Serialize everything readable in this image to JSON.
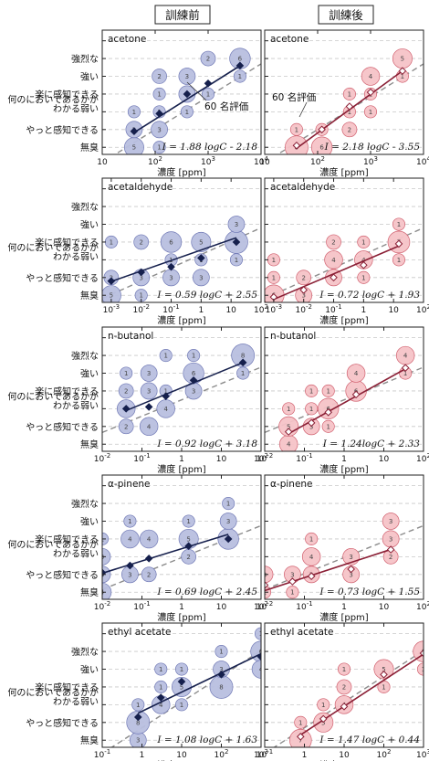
{
  "headers": {
    "left": "訓練前",
    "right": "訓練後"
  },
  "y_levels": [
    "無臭",
    "やっと感知できる",
    "わかる弱い",
    "何のにおいであるかが",
    "楽に感知できる",
    "強い",
    "強烈な"
  ],
  "annotation": "60 名評価",
  "colors": {
    "before_fill": "#b9bfe0",
    "before_edge": "#6b74b3",
    "before_line": "#16204d",
    "after_fill": "#f6c3c8",
    "after_edge": "#cf5a69",
    "after_line": "#8a1f35",
    "dash": "#8c8c8c",
    "grid": "#c8c8c8"
  },
  "chart_data": [
    {
      "type": "scatter",
      "chemical": "acetone",
      "column": "訓練前",
      "xlabel": "濃度 [ppm]",
      "xscale": "log",
      "xlim": [
        10,
        10000
      ],
      "ylim": [
        -0.4,
        6.6
      ],
      "xticks": [
        "10",
        "10^2",
        "10^3",
        "10^4"
      ],
      "equation": "I = 1.88 logC - 2.18",
      "fit": {
        "slope": 1.88,
        "intercept": -2.18
      },
      "dashed": {
        "slope": 1.85,
        "intercept": -2.7
      },
      "means": [
        [
          40,
          0.9
        ],
        [
          120,
          1.9
        ],
        [
          400,
          3.0
        ],
        [
          1000,
          3.6
        ],
        [
          4000,
          4.6
        ]
      ],
      "bubbles": [
        [
          40,
          0,
          5
        ],
        [
          40,
          1,
          3
        ],
        [
          120,
          1,
          3
        ],
        [
          120,
          2,
          1
        ],
        [
          120,
          3,
          1
        ],
        [
          120,
          4,
          2
        ],
        [
          400,
          3,
          3
        ],
        [
          400,
          4,
          3
        ],
        [
          400,
          2,
          1
        ],
        [
          1000,
          5,
          2
        ],
        [
          1000,
          3,
          1
        ],
        [
          4000,
          5,
          6
        ],
        [
          4000,
          4,
          1
        ],
        [
          40,
          2,
          1
        ],
        [
          120,
          0,
          1
        ]
      ]
    },
    {
      "type": "scatter",
      "chemical": "acetone",
      "column": "訓練後",
      "xlabel": "濃度 [ppm]",
      "xscale": "log",
      "xlim": [
        10,
        10000
      ],
      "ylim": [
        -0.4,
        6.6
      ],
      "xticks": [
        "10",
        "10^2",
        "10^3",
        "10^4"
      ],
      "equation": "I = 2.18 logC - 3.55",
      "fit": {
        "slope": 2.18,
        "intercept": -3.55
      },
      "dashed": {
        "slope": 1.85,
        "intercept": -2.7
      },
      "means": [
        [
          40,
          0.1
        ],
        [
          120,
          1.0
        ],
        [
          400,
          2.3
        ],
        [
          1000,
          3.1
        ],
        [
          4000,
          4.3
        ]
      ],
      "bubbles": [
        [
          40,
          0,
          8
        ],
        [
          120,
          0,
          6
        ],
        [
          120,
          1,
          1
        ],
        [
          400,
          1,
          2
        ],
        [
          400,
          2,
          1
        ],
        [
          400,
          3,
          1
        ],
        [
          1000,
          3,
          1
        ],
        [
          1000,
          4,
          4
        ],
        [
          1000,
          2,
          1
        ],
        [
          4000,
          5,
          5
        ],
        [
          4000,
          4,
          1
        ],
        [
          40,
          1,
          1
        ]
      ]
    },
    {
      "type": "scatter",
      "chemical": "acetaldehyde",
      "column": "訓練前",
      "xlabel": "濃度 [ppm]",
      "xscale": "log",
      "xlim": [
        0.0005,
        100
      ],
      "ylim": [
        -0.4,
        6.6
      ],
      "xticks": [
        "10^-3",
        "10^-2",
        "10^-1",
        "1",
        "10",
        "10^2"
      ],
      "equation": "I = 0.59 logC + 2.55",
      "fit": {
        "slope": 0.59,
        "intercept": 2.55
      },
      "dashed": {
        "slope": 0.75,
        "intercept": 2.3
      },
      "means": [
        [
          0.001,
          0.8
        ],
        [
          0.01,
          1.3
        ],
        [
          0.1,
          1.6
        ],
        [
          1,
          2.1
        ],
        [
          15,
          3.0
        ]
      ],
      "bubbles": [
        [
          0.001,
          0,
          5
        ],
        [
          0.001,
          1,
          2
        ],
        [
          0.001,
          3,
          1
        ],
        [
          0.01,
          0,
          1
        ],
        [
          0.01,
          1,
          3
        ],
        [
          0.01,
          3,
          2
        ],
        [
          0.1,
          1,
          3
        ],
        [
          0.1,
          3,
          6
        ],
        [
          0.1,
          2,
          1
        ],
        [
          1,
          3,
          5
        ],
        [
          1,
          1,
          3
        ],
        [
          1,
          2,
          1
        ],
        [
          15,
          3,
          8
        ],
        [
          15,
          4,
          3
        ],
        [
          15,
          2,
          1
        ]
      ]
    },
    {
      "type": "scatter",
      "chemical": "acetaldehyde",
      "column": "訓練後",
      "xlabel": "濃度 [ppm]",
      "xscale": "log",
      "xlim": [
        0.0005,
        100
      ],
      "ylim": [
        -0.4,
        6.6
      ],
      "xticks": [
        "10^-3",
        "10^-2",
        "10^-1",
        "1",
        "10",
        "10^2"
      ],
      "equation": "I = 0.72 logC + 1.93",
      "fit": {
        "slope": 0.72,
        "intercept": 1.93
      },
      "dashed": {
        "slope": 0.75,
        "intercept": 2.3
      },
      "means": [
        [
          0.001,
          -0.1
        ],
        [
          0.01,
          0.3
        ],
        [
          0.1,
          1.0
        ],
        [
          1,
          1.7
        ],
        [
          15,
          2.9
        ]
      ],
      "bubbles": [
        [
          0.001,
          0,
          6
        ],
        [
          0.001,
          1,
          1
        ],
        [
          0.001,
          2,
          1
        ],
        [
          0.01,
          0,
          3
        ],
        [
          0.01,
          1,
          2
        ],
        [
          0.1,
          1,
          3
        ],
        [
          0.1,
          2,
          4
        ],
        [
          0.1,
          3,
          2
        ],
        [
          1,
          2,
          4
        ],
        [
          1,
          1,
          1
        ],
        [
          1,
          3,
          1
        ],
        [
          15,
          3,
          7
        ],
        [
          15,
          2,
          1
        ],
        [
          15,
          4,
          1
        ]
      ]
    },
    {
      "type": "scatter",
      "chemical": "n-butanol",
      "column": "訓練前",
      "xlabel": "濃度 [ppm]",
      "xscale": "log",
      "xlim": [
        0.01,
        100
      ],
      "ylim": [
        -0.4,
        6.6
      ],
      "xticks": [
        "10^-2",
        "10^-1",
        "1",
        "10",
        "10^2"
      ],
      "equation": "I = 0.92 logC + 3.18",
      "fit": {
        "slope": 0.92,
        "intercept": 3.18
      },
      "dashed": {
        "slope": 0.92,
        "intercept": 2.5
      },
      "means": [
        [
          0.04,
          2.0
        ],
        [
          0.15,
          2.1
        ],
        [
          0.4,
          2.7
        ],
        [
          2,
          3.6
        ],
        [
          35,
          4.6
        ]
      ],
      "bubbles": [
        [
          0.04,
          1,
          2
        ],
        [
          0.04,
          2,
          4
        ],
        [
          0.04,
          3,
          2
        ],
        [
          0.04,
          4,
          1
        ],
        [
          0.15,
          1,
          4
        ],
        [
          0.15,
          3,
          3
        ],
        [
          0.15,
          4,
          3
        ],
        [
          0.4,
          2,
          4
        ],
        [
          0.4,
          3,
          1
        ],
        [
          0.4,
          5,
          1
        ],
        [
          2,
          3,
          3
        ],
        [
          2,
          4,
          6
        ],
        [
          2,
          5,
          1
        ],
        [
          35,
          5,
          8
        ],
        [
          35,
          4,
          1
        ]
      ]
    },
    {
      "type": "scatter",
      "chemical": "n-butanol",
      "column": "訓練後",
      "xlabel": "濃度 [ppm]",
      "xscale": "log",
      "xlim": [
        0.01,
        100
      ],
      "ylim": [
        -0.4,
        6.6
      ],
      "xticks": [
        "10^-2",
        "10^-1",
        "1",
        "10",
        "10^2"
      ],
      "equation": "I = 1.24logC + 2.33",
      "fit": {
        "slope": 1.24,
        "intercept": 2.33
      },
      "dashed": {
        "slope": 0.92,
        "intercept": 2.5
      },
      "means": [
        [
          0.04,
          0.7
        ],
        [
          0.15,
          1.2
        ],
        [
          0.4,
          1.8
        ],
        [
          2,
          2.8
        ],
        [
          35,
          4.3
        ]
      ],
      "bubbles": [
        [
          0.04,
          0,
          4
        ],
        [
          0.04,
          1,
          5
        ],
        [
          0.04,
          2,
          1
        ],
        [
          0.15,
          1,
          3
        ],
        [
          0.15,
          2,
          1
        ],
        [
          0.15,
          3,
          1
        ],
        [
          0.4,
          2,
          6
        ],
        [
          0.4,
          1,
          1
        ],
        [
          0.4,
          3,
          1
        ],
        [
          2,
          3,
          6
        ],
        [
          2,
          4,
          4
        ],
        [
          35,
          5,
          4
        ],
        [
          35,
          4,
          1
        ]
      ]
    },
    {
      "type": "scatter",
      "chemical": "α-pinene",
      "column": "訓練前",
      "xlabel": "濃度 [ppm]",
      "xscale": "log",
      "xlim": [
        0.01,
        100
      ],
      "ylim": [
        -0.4,
        6.6
      ],
      "xticks": [
        "10^-2",
        "10^-1",
        "1",
        "10",
        "10^2"
      ],
      "equation": "I = 0.69 logC + 2.45",
      "fit": {
        "slope": 0.69,
        "intercept": 2.45
      },
      "dashed": {
        "slope": 0.9,
        "intercept": 1.95
      },
      "means": [
        [
          0.01,
          1.1
        ],
        [
          0.05,
          1.5
        ],
        [
          0.15,
          1.9
        ],
        [
          1.5,
          2.6
        ],
        [
          15,
          3.0
        ]
      ],
      "bubbles": [
        [
          0.01,
          0,
          4
        ],
        [
          0.01,
          1,
          3
        ],
        [
          0.01,
          2,
          3
        ],
        [
          0.01,
          3,
          1
        ],
        [
          0.05,
          1,
          3
        ],
        [
          0.05,
          3,
          4
        ],
        [
          0.05,
          4,
          1
        ],
        [
          0.15,
          1,
          2
        ],
        [
          0.15,
          3,
          4
        ],
        [
          1.5,
          2,
          2
        ],
        [
          1.5,
          3,
          5
        ],
        [
          1.5,
          4,
          1
        ],
        [
          15,
          3,
          6
        ],
        [
          15,
          4,
          3
        ],
        [
          15,
          5,
          1
        ]
      ]
    },
    {
      "type": "scatter",
      "chemical": "α-pinene",
      "column": "訓練後",
      "xlabel": "濃度 [ppm]",
      "xscale": "log",
      "xlim": [
        0.01,
        100
      ],
      "ylim": [
        -0.4,
        6.6
      ],
      "xticks": [
        "10^-2",
        "10^-1",
        "1",
        "10",
        "10^2"
      ],
      "equation": "I = 0.73 logC + 1.55",
      "fit": {
        "slope": 0.73,
        "intercept": 1.55
      },
      "dashed": {
        "slope": 0.9,
        "intercept": 1.95
      },
      "means": [
        [
          0.01,
          0.4
        ],
        [
          0.05,
          0.6
        ],
        [
          0.15,
          0.9
        ],
        [
          1.5,
          1.3
        ],
        [
          15,
          2.4
        ]
      ],
      "bubbles": [
        [
          0.01,
          1,
          3
        ],
        [
          0.01,
          0,
          1
        ],
        [
          0.05,
          1,
          3
        ],
        [
          0.05,
          0,
          1
        ],
        [
          0.15,
          1,
          3
        ],
        [
          0.15,
          2,
          4
        ],
        [
          0.15,
          3,
          1
        ],
        [
          1.5,
          1,
          3
        ],
        [
          1.5,
          2,
          3
        ],
        [
          15,
          2,
          2
        ],
        [
          15,
          3,
          3
        ],
        [
          15,
          4,
          3
        ]
      ]
    },
    {
      "type": "scatter",
      "chemical": "ethyl acetate",
      "column": "訓練前",
      "xlabel": "濃度 [ppm]",
      "xscale": "log",
      "xlim": [
        0.1,
        1000
      ],
      "ylim": [
        -0.4,
        6.6
      ],
      "xticks": [
        "10^-1",
        "1",
        "10",
        "10^2",
        "10^3"
      ],
      "equation": "I = 1.08 logC + 1.63",
      "fit": {
        "slope": 1.08,
        "intercept": 1.63
      },
      "dashed": {
        "slope": 1.45,
        "intercept": 0.7
      },
      "means": [
        [
          0.8,
          1.3
        ],
        [
          3,
          2.4
        ],
        [
          10,
          3.3
        ],
        [
          100,
          3.7
        ],
        [
          1000,
          4.7
        ]
      ],
      "bubbles": [
        [
          0.8,
          0,
          3
        ],
        [
          0.8,
          1,
          8
        ],
        [
          0.8,
          2,
          1
        ],
        [
          3,
          2,
          4
        ],
        [
          3,
          3,
          1
        ],
        [
          3,
          4,
          1
        ],
        [
          10,
          2,
          1
        ],
        [
          10,
          3,
          5
        ],
        [
          10,
          4,
          1
        ],
        [
          100,
          3,
          8
        ],
        [
          100,
          4,
          3
        ],
        [
          100,
          5,
          1
        ],
        [
          1000,
          5,
          6
        ],
        [
          1000,
          4,
          4
        ],
        [
          1000,
          6,
          1
        ]
      ]
    },
    {
      "type": "scatter",
      "chemical": "ethyl acetate",
      "column": "訓練後",
      "xlabel": "濃度 [ppm]",
      "xscale": "log",
      "xlim": [
        0.1,
        1000
      ],
      "ylim": [
        -0.4,
        6.6
      ],
      "xticks": [
        "10^-1",
        "1",
        "10",
        "10^2",
        "10^3"
      ],
      "equation": "I = 1.47 logC + 0.44",
      "fit": {
        "slope": 1.47,
        "intercept": 0.44
      },
      "dashed": {
        "slope": 1.45,
        "intercept": 0.7
      },
      "means": [
        [
          0.8,
          0.2
        ],
        [
          3,
          1.2
        ],
        [
          10,
          1.9
        ],
        [
          100,
          3.7
        ],
        [
          1000,
          4.9
        ]
      ],
      "bubbles": [
        [
          0.8,
          0,
          7
        ],
        [
          0.8,
          1,
          1
        ],
        [
          3,
          1,
          5
        ],
        [
          3,
          2,
          1
        ],
        [
          10,
          2,
          4
        ],
        [
          10,
          3,
          2
        ],
        [
          10,
          4,
          1
        ],
        [
          100,
          4,
          5
        ],
        [
          100,
          3,
          1
        ],
        [
          1000,
          5,
          6
        ],
        [
          1000,
          4,
          1
        ]
      ]
    }
  ]
}
